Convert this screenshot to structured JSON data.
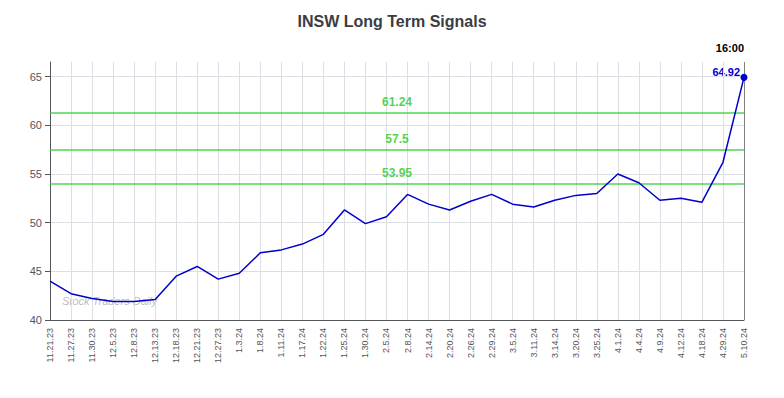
{
  "chart_data": {
    "type": "line",
    "title": "INSW Long Term Signals",
    "categories": [
      "11.21.23",
      "11.27.23",
      "11.30.23",
      "12.5.23",
      "12.8.23",
      "12.13.23",
      "12.18.23",
      "12.21.23",
      "12.27.23",
      "1.3.24",
      "1.8.24",
      "1.11.24",
      "1.17.24",
      "1.22.24",
      "1.25.24",
      "1.30.24",
      "2.5.24",
      "2.8.24",
      "2.14.24",
      "2.20.24",
      "2.26.24",
      "2.29.24",
      "3.5.24",
      "3.11.24",
      "3.14.24",
      "3.20.24",
      "3.25.24",
      "4.1.24",
      "4.4.24",
      "4.9.24",
      "4.12.24",
      "4.18.24",
      "4.29.24",
      "5.10.24"
    ],
    "values": [
      44.0,
      42.7,
      42.2,
      41.9,
      41.9,
      42.1,
      44.5,
      45.5,
      44.2,
      44.8,
      46.9,
      47.2,
      47.8,
      48.8,
      51.3,
      49.9,
      50.6,
      52.9,
      51.9,
      51.3,
      52.2,
      52.9,
      51.9,
      51.6,
      52.3,
      52.8,
      53.0,
      55.0,
      54.1,
      52.3,
      52.5,
      52.1,
      56.2,
      64.92
    ],
    "color": "#0000cc",
    "ylim": [
      40,
      66.5
    ],
    "yticks": [
      40,
      45,
      50,
      55,
      60,
      65
    ],
    "grid": true,
    "hlines": [
      {
        "value": 61.24,
        "label": "61.24",
        "color": "#33cc33"
      },
      {
        "value": 57.5,
        "label": "57.5",
        "color": "#33cc33"
      },
      {
        "value": 53.95,
        "label": "53.95",
        "color": "#33cc33"
      }
    ],
    "annotations": [
      {
        "text": "16:00",
        "color": "#000000"
      },
      {
        "text": "64.92",
        "color": "#0000cc"
      }
    ],
    "watermark": "Stock Traders Daily"
  }
}
